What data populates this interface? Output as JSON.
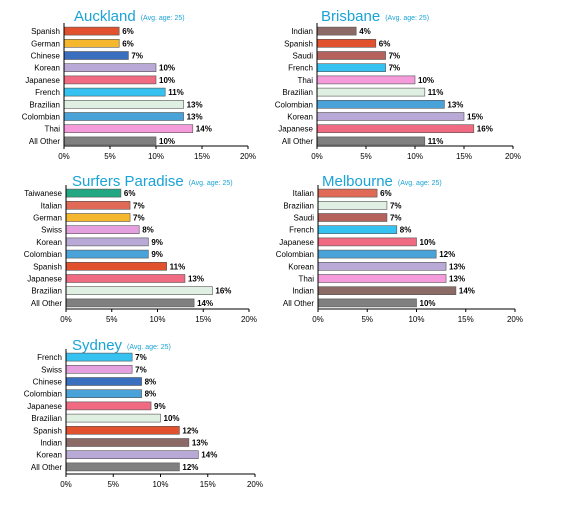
{
  "chart_data": [
    {
      "type": "bar",
      "orientation": "horizontal",
      "title": "Auckland",
      "subtitle": "(Avg. age: 25)",
      "categories": [
        "Spanish",
        "German",
        "Chinese",
        "Korean",
        "Japanese",
        "French",
        "Brazilian",
        "Colombian",
        "Thai",
        "All Other"
      ],
      "values": [
        6,
        6,
        7,
        10,
        10,
        11,
        13,
        13,
        14,
        10
      ],
      "value_labels": [
        "6%",
        "6%",
        "7%",
        "10%",
        "10%",
        "11%",
        "13%",
        "13%",
        "14%",
        "10%"
      ],
      "colors": [
        "#e2512e",
        "#f4b72d",
        "#3a6fc0",
        "#b9a9d6",
        "#f06a82",
        "#35c2f0",
        "#dff0e2",
        "#4aa3d8",
        "#f59bdc",
        "#808080"
      ],
      "xlim": [
        0,
        20
      ],
      "xticks": [
        "0%",
        "5%",
        "10%",
        "15%",
        "20%"
      ],
      "grid": false
    },
    {
      "type": "bar",
      "orientation": "horizontal",
      "title": "Brisbane",
      "subtitle": "(Avg. age: 25)",
      "categories": [
        "Indian",
        "Spanish",
        "Saudi",
        "French",
        "Thai",
        "Brazilian",
        "Colombian",
        "Korean",
        "Japanese",
        "All Other"
      ],
      "values": [
        4,
        6,
        7,
        7,
        10,
        11,
        13,
        15,
        16,
        11
      ],
      "value_labels": [
        "4%",
        "6%",
        "7%",
        "7%",
        "10%",
        "11%",
        "13%",
        "15%",
        "16%",
        "11%"
      ],
      "colors": [
        "#8c6a66",
        "#e2512e",
        "#b5615c",
        "#35c2f0",
        "#f59bdc",
        "#dff0e2",
        "#4aa3d8",
        "#b9a9d6",
        "#f06a82",
        "#808080"
      ],
      "xlim": [
        0,
        20
      ],
      "xticks": [
        "0%",
        "5%",
        "10%",
        "15%",
        "20%"
      ],
      "grid": false
    },
    {
      "type": "bar",
      "orientation": "horizontal",
      "title": "Surfers Paradise",
      "subtitle": "(Avg. age: 25)",
      "categories": [
        "Taiwanese",
        "Italian",
        "German",
        "Swiss",
        "Korean",
        "Colombian",
        "Spanish",
        "Japanese",
        "Brazilian",
        "All Other"
      ],
      "values": [
        6,
        7,
        7,
        8,
        9,
        9,
        11,
        13,
        16,
        14
      ],
      "value_labels": [
        "6%",
        "7%",
        "7%",
        "8%",
        "9%",
        "9%",
        "11%",
        "13%",
        "16%",
        "14%"
      ],
      "colors": [
        "#21a883",
        "#e06a55",
        "#f4b72d",
        "#e5a0e0",
        "#b9a9d6",
        "#4aa3d8",
        "#e2512e",
        "#f06a82",
        "#dff0e2",
        "#808080"
      ],
      "xlim": [
        0,
        20
      ],
      "xticks": [
        "0%",
        "5%",
        "10%",
        "15%",
        "20%"
      ],
      "grid": false
    },
    {
      "type": "bar",
      "orientation": "horizontal",
      "title": "Melbourne",
      "subtitle": "(Avg. age: 25)",
      "categories": [
        "Italian",
        "Brazilian",
        "Saudi",
        "French",
        "Japanese",
        "Colombian",
        "Korean",
        "Thai",
        "Indian",
        "All Other"
      ],
      "values": [
        6,
        7,
        7,
        8,
        10,
        12,
        13,
        13,
        14,
        10
      ],
      "value_labels": [
        "6%",
        "7%",
        "7%",
        "8%",
        "10%",
        "12%",
        "13%",
        "13%",
        "14%",
        "10%"
      ],
      "colors": [
        "#e06a55",
        "#dff0e2",
        "#b5615c",
        "#35c2f0",
        "#f06a82",
        "#4aa3d8",
        "#b9a9d6",
        "#f59bdc",
        "#8c6a66",
        "#808080"
      ],
      "xlim": [
        0,
        20
      ],
      "xticks": [
        "0%",
        "5%",
        "10%",
        "15%",
        "20%"
      ],
      "grid": false
    },
    {
      "type": "bar",
      "orientation": "horizontal",
      "title": "Sydney",
      "subtitle": "(Avg. age: 25)",
      "categories": [
        "French",
        "Swiss",
        "Chinese",
        "Colombian",
        "Japanese",
        "Brazilian",
        "Spanish",
        "Indian",
        "Korean",
        "All Other"
      ],
      "values": [
        7,
        7,
        8,
        8,
        9,
        10,
        12,
        13,
        14,
        12
      ],
      "value_labels": [
        "7%",
        "7%",
        "8%",
        "8%",
        "9%",
        "10%",
        "12%",
        "13%",
        "14%",
        "12%"
      ],
      "colors": [
        "#35c2f0",
        "#e5a0e0",
        "#3a6fc0",
        "#4aa3d8",
        "#f06a82",
        "#dff0e2",
        "#e2512e",
        "#8c6a66",
        "#b9a9d6",
        "#808080"
      ],
      "xlim": [
        0,
        20
      ],
      "xticks": [
        "0%",
        "5%",
        "10%",
        "15%",
        "20%"
      ],
      "grid": false
    }
  ]
}
